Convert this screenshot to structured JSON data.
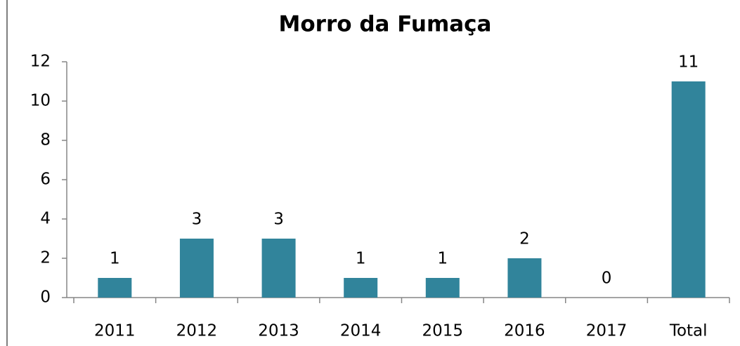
{
  "chart_data": {
    "type": "bar",
    "title": "Morro da Fumaça",
    "categories": [
      "2011",
      "2012",
      "2013",
      "2014",
      "2015",
      "2016",
      "2017",
      "Total"
    ],
    "values": [
      1,
      3,
      3,
      1,
      1,
      2,
      0,
      11
    ],
    "color": "#31849b",
    "ylim": [
      0,
      12
    ],
    "yticks": [
      0,
      2,
      4,
      6,
      8,
      10,
      12
    ],
    "grid": false
  }
}
